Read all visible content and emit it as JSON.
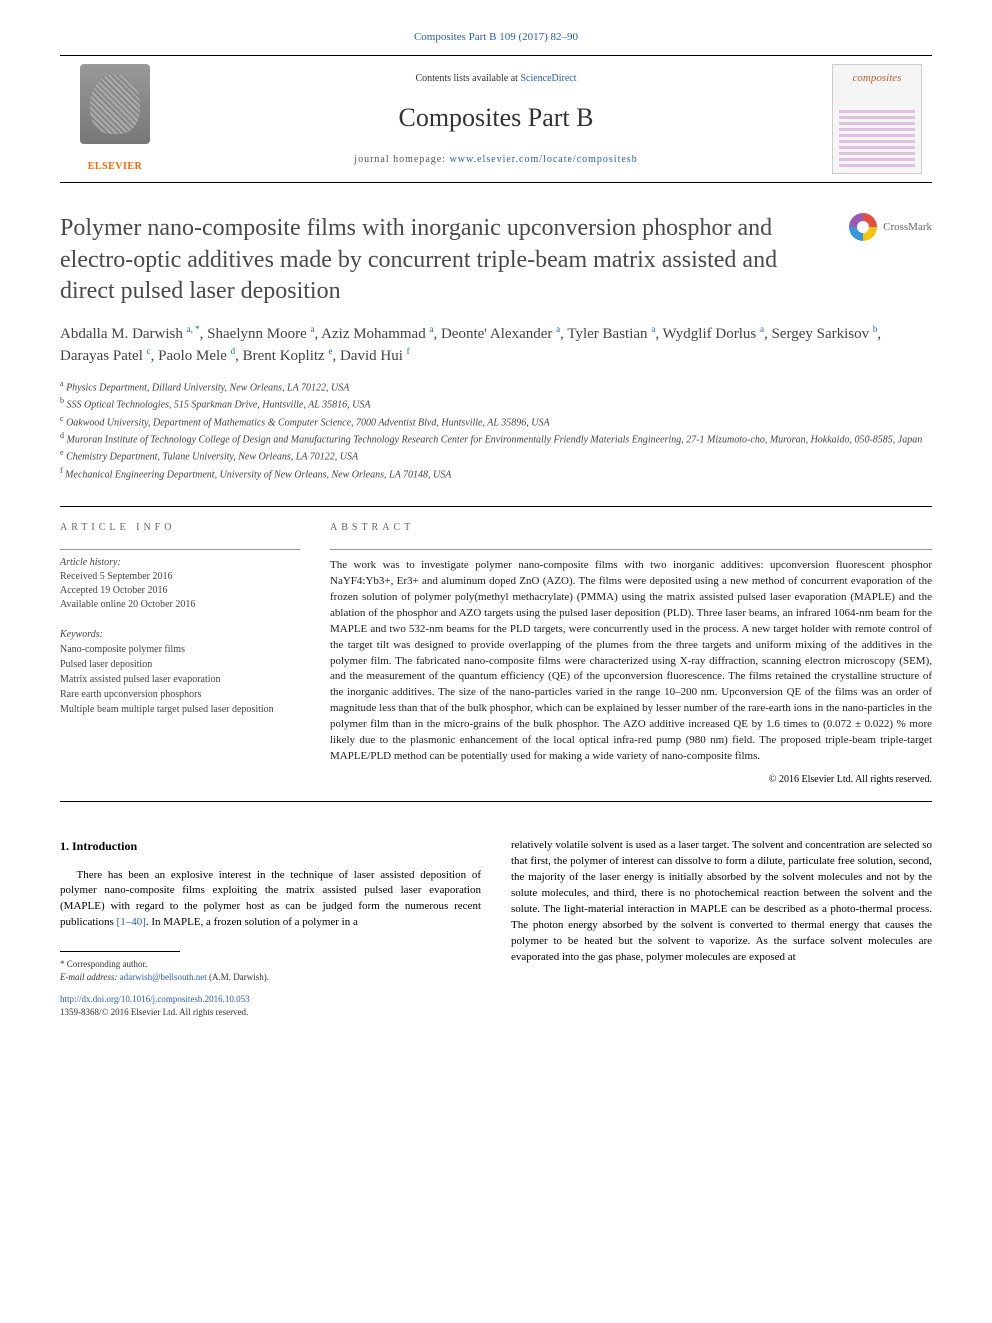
{
  "top_citation": "Composites Part B 109 (2017) 82–90",
  "masthead": {
    "contents_prefix": "Contents lists available at ",
    "contents_link": "ScienceDirect",
    "journal_name": "Composites Part B",
    "homepage_prefix": "journal homepage: ",
    "homepage_url": "www.elsevier.com/locate/compositesb",
    "publisher_name": "ELSEVIER",
    "cover_label": "composites"
  },
  "crossmark_label": "CrossMark",
  "title": "Polymer nano-composite films with inorganic upconversion phosphor and electro-optic additives made by concurrent triple-beam matrix assisted and direct pulsed laser deposition",
  "authors_html": "Abdalla M. Darwish <sup>a, *</sup>, Shaelynn Moore <sup>a</sup>, Aziz Mohammad <sup>a</sup>, Deonte' Alexander <sup>a</sup>, Tyler Bastian <sup>a</sup>, Wydglif Dorlus <sup>a</sup>, Sergey Sarkisov <sup>b</sup>, Darayas Patel <sup>c</sup>, Paolo Mele <sup>d</sup>, Brent Koplitz <sup>e</sup>, David Hui <sup>f</sup>",
  "affiliations": [
    {
      "sup": "a",
      "text": "Physics Department, Dillard University, New Orleans, LA 70122, USA"
    },
    {
      "sup": "b",
      "text": "SSS Optical Technologies, 515 Sparkman Drive, Huntsville, AL 35816, USA"
    },
    {
      "sup": "c",
      "text": "Oakwood University, Department of Mathematics & Computer Science, 7000 Adventist Blvd, Huntsville, AL 35896, USA"
    },
    {
      "sup": "d",
      "text": "Muroran Institute of Technology College of Design and Manufacturing Technology Research Center for Environmentally Friendly Materials Engineering, 27-1 Mizumoto-cho, Muroran, Hokkaido, 050-8585, Japan"
    },
    {
      "sup": "e",
      "text": "Chemistry Department, Tulane University, New Orleans, LA 70122, USA"
    },
    {
      "sup": "f",
      "text": "Mechanical Engineering Department, University of New Orleans, New Orleans, LA 70148, USA"
    }
  ],
  "article_info": {
    "heading": "ARTICLE INFO",
    "history_label": "Article history:",
    "received": "Received 5 September 2016",
    "accepted": "Accepted 19 October 2016",
    "available": "Available online 20 October 2016",
    "keywords_label": "Keywords:",
    "keywords": [
      "Nano-composite polymer films",
      "Pulsed laser deposition",
      "Matrix assisted pulsed laser evaporation",
      "Rare earth upconversion phosphors",
      "Multiple beam multiple target pulsed laser deposition"
    ]
  },
  "abstract": {
    "heading": "ABSTRACT",
    "text": "The work was to investigate polymer nano-composite films with two inorganic additives: upconversion fluorescent phosphor NaYF4:Yb3+, Er3+ and aluminum doped ZnO (AZO). The films were deposited using a new method of concurrent evaporation of the frozen solution of polymer poly(methyl methacrylate) (PMMA) using the matrix assisted pulsed laser evaporation (MAPLE) and the ablation of the phosphor and AZO targets using the pulsed laser deposition (PLD). Three laser beams, an infrared 1064-nm beam for the MAPLE and two 532-nm beams for the PLD targets, were concurrently used in the process. A new target holder with remote control of the target tilt was designed to provide overlapping of the plumes from the three targets and uniform mixing of the additives in the polymer film. The fabricated nano-composite films were characterized using X-ray diffraction, scanning electron microscopy (SEM), and the measurement of the quantum efficiency (QE) of the upconversion fluorescence. The films retained the crystalline structure of the inorganic additives. The size of the nano-particles varied in the range 10–200 nm. Upconversion QE of the films was an order of magnitude less than that of the bulk phosphor, which can be explained by lesser number of the rare-earth ions in the nano-particles in the polymer film than in the micro-grains of the bulk phosphor. The AZO additive increased QE by 1.6 times to (0.072 ± 0.022) % more likely due to the plasmonic enhancement of the local optical infra-red pump (980 nm) field. The proposed triple-beam triple-target MAPLE/PLD method can be potentially used for making a wide variety of nano-composite films.",
    "copyright": "© 2016 Elsevier Ltd. All rights reserved."
  },
  "body": {
    "section_number": "1.",
    "section_title": "Introduction",
    "left_paragraph": "There has been an explosive interest in the technique of laser assisted deposition of polymer nano-composite films exploiting the matrix assisted pulsed laser evaporation (MAPLE) with regard to the polymer host as can be judged form the numerous recent publications ",
    "ref_link": "[1–40]",
    "left_paragraph_cont": ". In MAPLE, a frozen solution of a polymer in a",
    "right_paragraph": "relatively volatile solvent is used as a laser target. The solvent and concentration are selected so that first, the polymer of interest can dissolve to form a dilute, particulate free solution, second, the majority of the laser energy is initially absorbed by the solvent molecules and not by the solute molecules, and third, there is no photochemical reaction between the solvent and the solute. The light-material interaction in MAPLE can be described as a photo-thermal process. The photon energy absorbed by the solvent is converted to thermal energy that causes the polymer to be heated but the solvent to vaporize. As the surface solvent molecules are evaporated into the gas phase, polymer molecules are exposed at"
  },
  "footnotes": {
    "corr_label": "* Corresponding author.",
    "email_label": "E-mail address: ",
    "email": "adarwish@bellsouth.net",
    "email_suffix": " (A.M. Darwish)."
  },
  "doi": {
    "url": "http://dx.doi.org/10.1016/j.compositesb.2016.10.053",
    "issn_line": "1359-8368/© 2016 Elsevier Ltd. All rights reserved."
  },
  "colors": {
    "link": "#2a5db0",
    "publisher": "#ff6600",
    "text": "#000000",
    "muted": "#444444"
  }
}
